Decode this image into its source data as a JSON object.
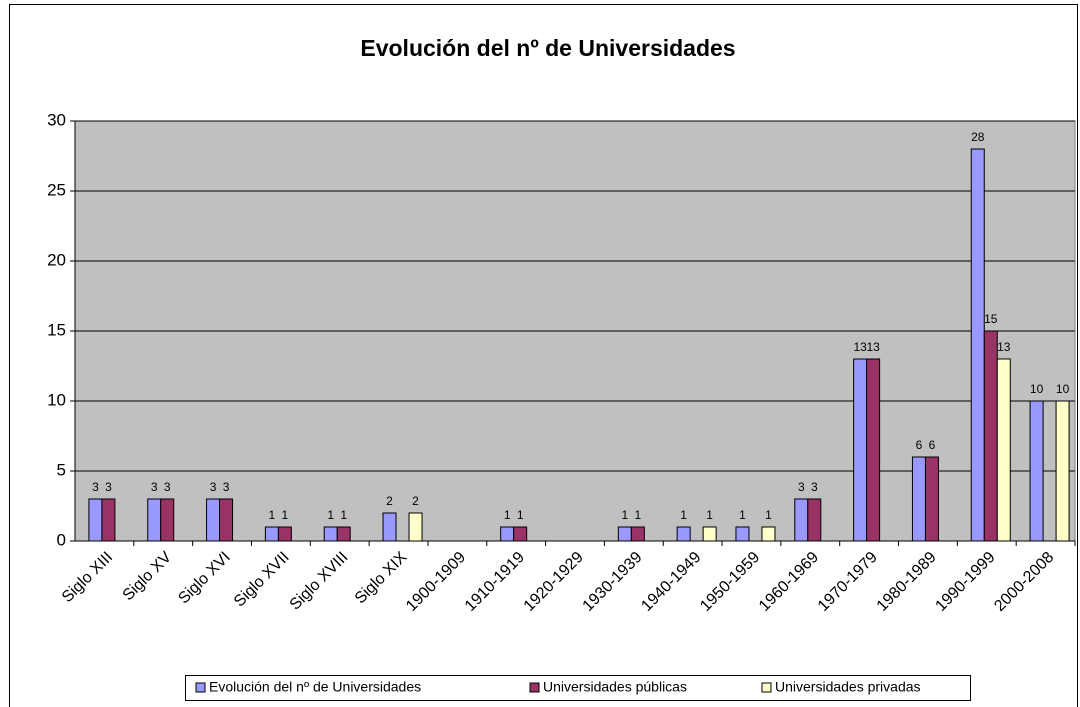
{
  "chart_data": {
    "type": "bar",
    "title": "Evolución del nº de Universidades",
    "categories": [
      "Siglo XIII",
      "Siglo XV",
      "Siglo XVI",
      "Siglo XVII",
      "Siglo XVIII",
      "Siglo XIX",
      "1900-1909",
      "1910-1919",
      "1920-1929",
      "1930-1939",
      "1940-1949",
      "1950-1959",
      "1960-1969",
      "1970-1979",
      "1980-1989",
      "1990-1999",
      "2000-2008"
    ],
    "series": [
      {
        "name": "Evolución del nº de Universidades",
        "color": "#9999ff",
        "values": [
          3,
          3,
          3,
          1,
          1,
          2,
          null,
          1,
          null,
          1,
          1,
          1,
          3,
          13,
          6,
          28,
          10
        ]
      },
      {
        "name": "Universidades públicas",
        "color": "#993366",
        "values": [
          3,
          3,
          3,
          1,
          1,
          null,
          null,
          1,
          null,
          1,
          null,
          null,
          3,
          13,
          6,
          15,
          null
        ]
      },
      {
        "name": "Universidades privadas",
        "color": "#ffffcc",
        "values": [
          null,
          null,
          null,
          null,
          null,
          2,
          null,
          null,
          null,
          null,
          1,
          1,
          null,
          null,
          null,
          13,
          10
        ]
      }
    ],
    "ylim": [
      0,
      30
    ],
    "yticks": [
      0,
      5,
      10,
      15,
      20,
      25,
      30
    ],
    "grid": true,
    "legend": "bottom"
  }
}
